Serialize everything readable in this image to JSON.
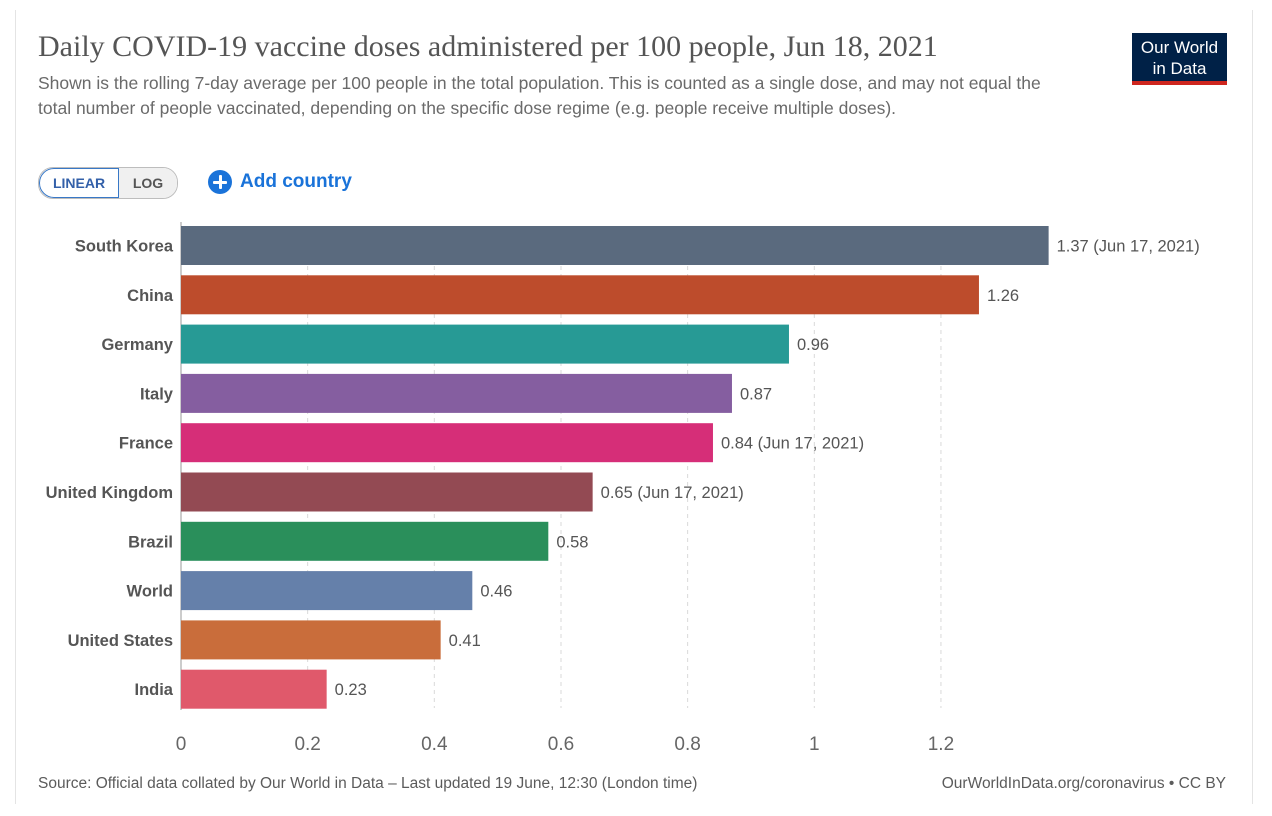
{
  "header": {
    "title": "Daily COVID-19 vaccine doses administered per 100 people, Jun 18, 2021",
    "subtitle": "Shown is the rolling 7-day average per 100 people in the total population. This is counted as a single dose, and may not equal the total number of people vaccinated, depending on the specific dose regime (e.g. people receive multiple doses).",
    "logo_line1": "Our World",
    "logo_line2": "in Data"
  },
  "controls": {
    "linear_label": "LINEAR",
    "log_label": "LOG",
    "add_country_label": "Add country",
    "active_scale": "linear"
  },
  "footer": {
    "source": "Source: Official data collated by Our World in Data – Last updated 19 June, 12:30 (London time)",
    "license": "OurWorldInData.org/coronavirus • CC BY"
  },
  "chart_data": {
    "type": "bar",
    "orientation": "horizontal",
    "title": "Daily COVID-19 vaccine doses administered per 100 people, Jun 18, 2021",
    "categories": [
      "South Korea",
      "China",
      "Germany",
      "Italy",
      "France",
      "United Kingdom",
      "Brazil",
      "World",
      "United States",
      "India"
    ],
    "values": [
      1.37,
      1.26,
      0.96,
      0.87,
      0.84,
      0.65,
      0.58,
      0.46,
      0.41,
      0.23
    ],
    "value_labels": [
      "1.37 (Jun 17, 2021)",
      "1.26",
      "0.96",
      "0.87",
      "0.84 (Jun 17, 2021)",
      "0.65 (Jun 17, 2021)",
      "0.58",
      "0.46",
      "0.41",
      "0.23"
    ],
    "colors": [
      "#5a6a7e",
      "#bd4c2c",
      "#279a95",
      "#855ea0",
      "#d62e78",
      "#934a53",
      "#2a8f5b",
      "#6580aa",
      "#c96d3b",
      "#e0596b"
    ],
    "xticks": [
      0,
      0.2,
      0.4,
      0.6,
      0.8,
      1,
      1.2
    ],
    "xtick_labels": [
      "0",
      "0.2",
      "0.4",
      "0.6",
      "0.8",
      "1",
      "1.2"
    ],
    "xlim": [
      0,
      1.37
    ],
    "grid": "vertical dashed",
    "legend": "none"
  }
}
